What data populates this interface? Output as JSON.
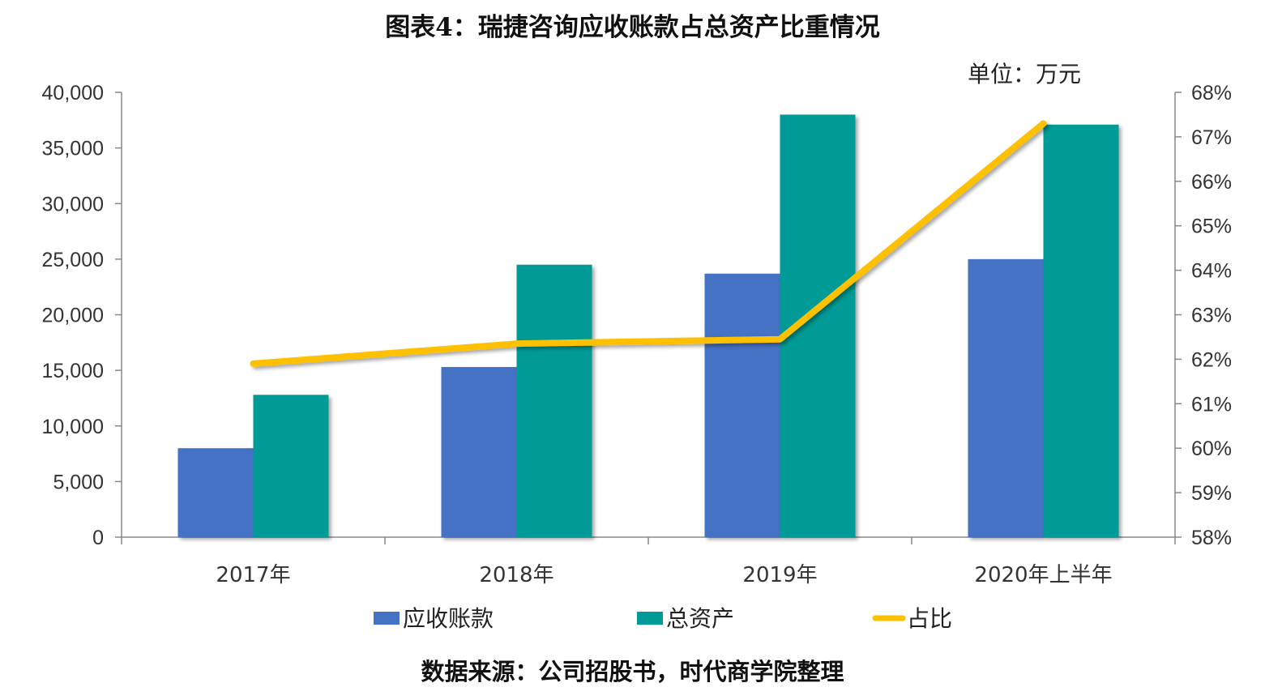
{
  "title": "图表4：瑞捷咨询应收账款占总资产比重情况",
  "unit": "单位：万元",
  "source": "数据来源：公司招股书，时代商学院整理",
  "colors": {
    "receivables": "#4472C4",
    "assets": "#009B96",
    "ratio": "#FFC000"
  },
  "chart_data": {
    "type": "bar",
    "categories": [
      "2017年",
      "2018年",
      "2019年",
      "2020年上半年"
    ],
    "series": [
      {
        "name": "应收账款",
        "kind": "bar",
        "axis": "left",
        "values": [
          8000,
          15300,
          23700,
          25000
        ]
      },
      {
        "name": "总资产",
        "kind": "bar",
        "axis": "left",
        "values": [
          12800,
          24500,
          38000,
          37100
        ]
      },
      {
        "name": "占比",
        "kind": "line",
        "axis": "right",
        "values": [
          61.9,
          62.35,
          62.45,
          67.3
        ]
      }
    ],
    "left_axis": {
      "ylim": [
        0,
        40000
      ],
      "ticks": [
        "0",
        "5,000",
        "10,000",
        "15,000",
        "20,000",
        "25,000",
        "30,000",
        "35,000",
        "40,000"
      ]
    },
    "right_axis": {
      "ylim": [
        58,
        68
      ],
      "ticks": [
        "58%",
        "59%",
        "60%",
        "61%",
        "62%",
        "63%",
        "64%",
        "65%",
        "66%",
        "67%",
        "68%"
      ]
    },
    "legend": {
      "placement": "bottom",
      "labels": [
        "应收账款",
        "总资产",
        "占比"
      ]
    },
    "grid": false
  }
}
